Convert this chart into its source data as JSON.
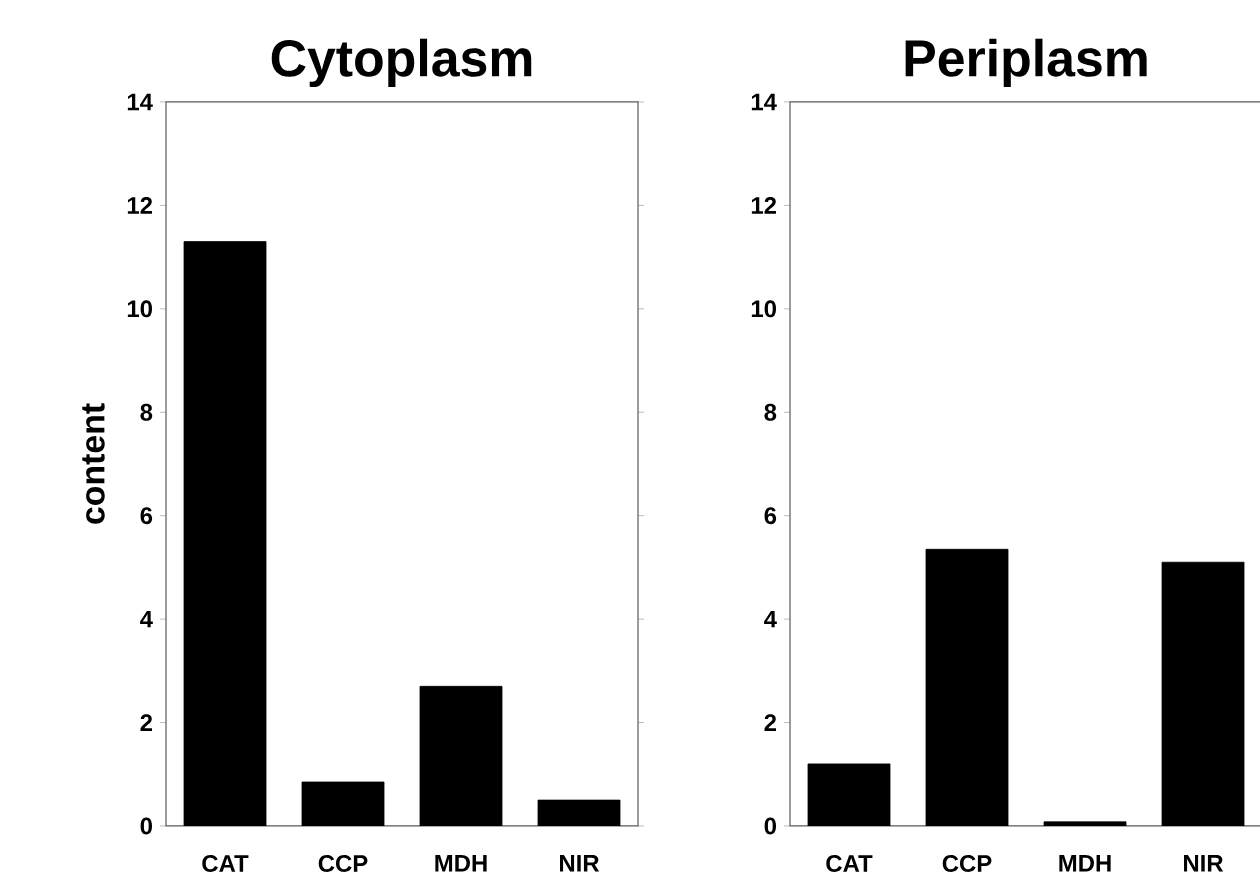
{
  "chart_data": [
    {
      "type": "bar",
      "title": "Cytoplasm",
      "ylabel": "content",
      "categories": [
        "CAT",
        "CCP",
        "MDH",
        "NIR"
      ],
      "values": [
        11.3,
        0.85,
        2.7,
        0.5
      ],
      "color": "#000000",
      "ylim": [
        0,
        14
      ],
      "yticks": [
        0,
        2,
        4,
        6,
        8,
        10,
        12,
        14
      ],
      "grid": false
    },
    {
      "type": "bar",
      "title": "Periplasm",
      "categories": [
        "CAT",
        "CCP",
        "MDH",
        "NIR"
      ],
      "values": [
        1.2,
        5.35,
        0.08,
        5.1
      ],
      "color": "#000000",
      "ylim": [
        0,
        14
      ],
      "yticks": [
        0,
        2,
        4,
        6,
        8,
        10,
        12,
        14
      ],
      "grid": false
    }
  ]
}
